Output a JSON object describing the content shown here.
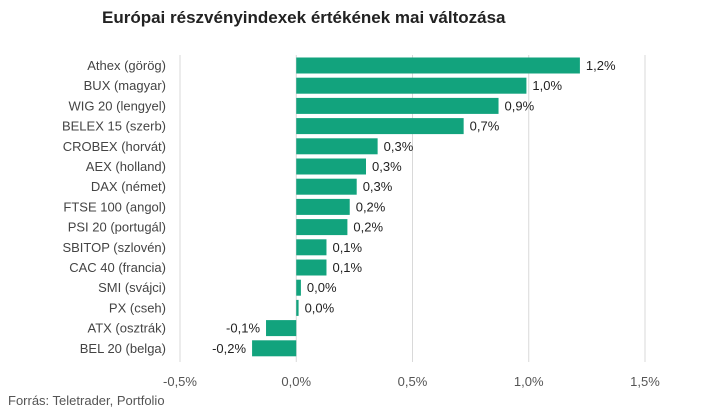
{
  "title": "Európai részvényindexek értékének mai változása",
  "source": "Forrás: Teletrader, Portfolio",
  "colors": {
    "bar": "#12a37d",
    "grid": "#d9d9d9"
  },
  "chart_data": {
    "type": "bar",
    "orientation": "horizontal",
    "title": "Európai részvényindexek értékének mai változása",
    "categories": [
      "Athex (görög)",
      "BUX (magyar)",
      "WIG 20 (lengyel)",
      "BELEX 15 (szerb)",
      "CROBEX (horvát)",
      "AEX (holland)",
      "DAX (német)",
      "FTSE 100 (angol)",
      "PSI 20 (portugál)",
      "SBITOP (szlovén)",
      "CAC 40 (francia)",
      "SMI (svájci)",
      "PX (cseh)",
      "ATX (osztrák)",
      "BEL 20 (belga)"
    ],
    "values": [
      1.22,
      0.99,
      0.87,
      0.72,
      0.35,
      0.3,
      0.26,
      0.23,
      0.22,
      0.13,
      0.13,
      0.02,
      0.01,
      -0.13,
      -0.19
    ],
    "value_labels": [
      "1,2%",
      "1,0%",
      "0,9%",
      "0,7%",
      "0,3%",
      "0,3%",
      "0,3%",
      "0,2%",
      "0,2%",
      "0,1%",
      "0,1%",
      "0,0%",
      "0,0%",
      "-0,1%",
      "-0,2%"
    ],
    "xlim": [
      -0.5,
      1.5
    ],
    "xticks": [
      -0.5,
      0.0,
      0.5,
      1.0,
      1.5
    ],
    "xtick_labels": [
      "-0,5%",
      "0,0%",
      "0,5%",
      "1,0%",
      "1,5%"
    ],
    "grid": true,
    "legend": "none"
  }
}
